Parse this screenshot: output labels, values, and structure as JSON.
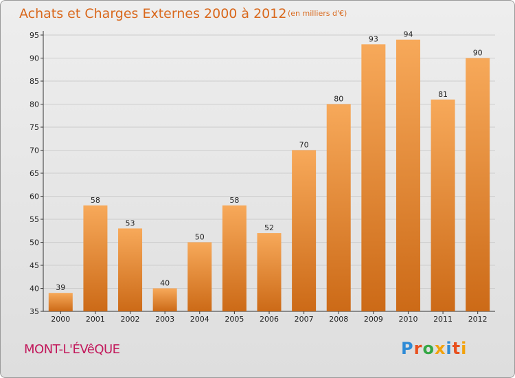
{
  "header": {
    "title": "Achats et Charges Externes 2000 à 2012",
    "subtitle": "(en milliers d'€)"
  },
  "footer": {
    "commune": "MONT-L'ÉVêQUE",
    "logo_text": "Proxiti",
    "logo_colors": [
      "#2e8bd6",
      "#e8501e",
      "#35a845",
      "#f2a20c",
      "#2e8bd6",
      "#e8501e",
      "#f2a20c"
    ]
  },
  "colors": {
    "bar_top": "#f7a95a",
    "bar_bottom": "#cc6a17",
    "grid": "#cccccc",
    "title": "#d9681c",
    "commune": "#c2185b"
  },
  "chart_data": {
    "type": "bar",
    "title": "Achats et Charges Externes 2000 à 2012",
    "subtitle": "(en milliers d'€)",
    "categories": [
      "2000",
      "2001",
      "2002",
      "2003",
      "2004",
      "2005",
      "2006",
      "2007",
      "2008",
      "2009",
      "2010",
      "2011",
      "2012"
    ],
    "values": [
      39,
      58,
      53,
      40,
      50,
      58,
      52,
      70,
      80,
      93,
      94,
      81,
      90
    ],
    "ylim": [
      35,
      95
    ],
    "yticks": [
      35,
      40,
      45,
      50,
      55,
      60,
      65,
      70,
      75,
      80,
      85,
      90,
      95
    ],
    "grid": true
  }
}
